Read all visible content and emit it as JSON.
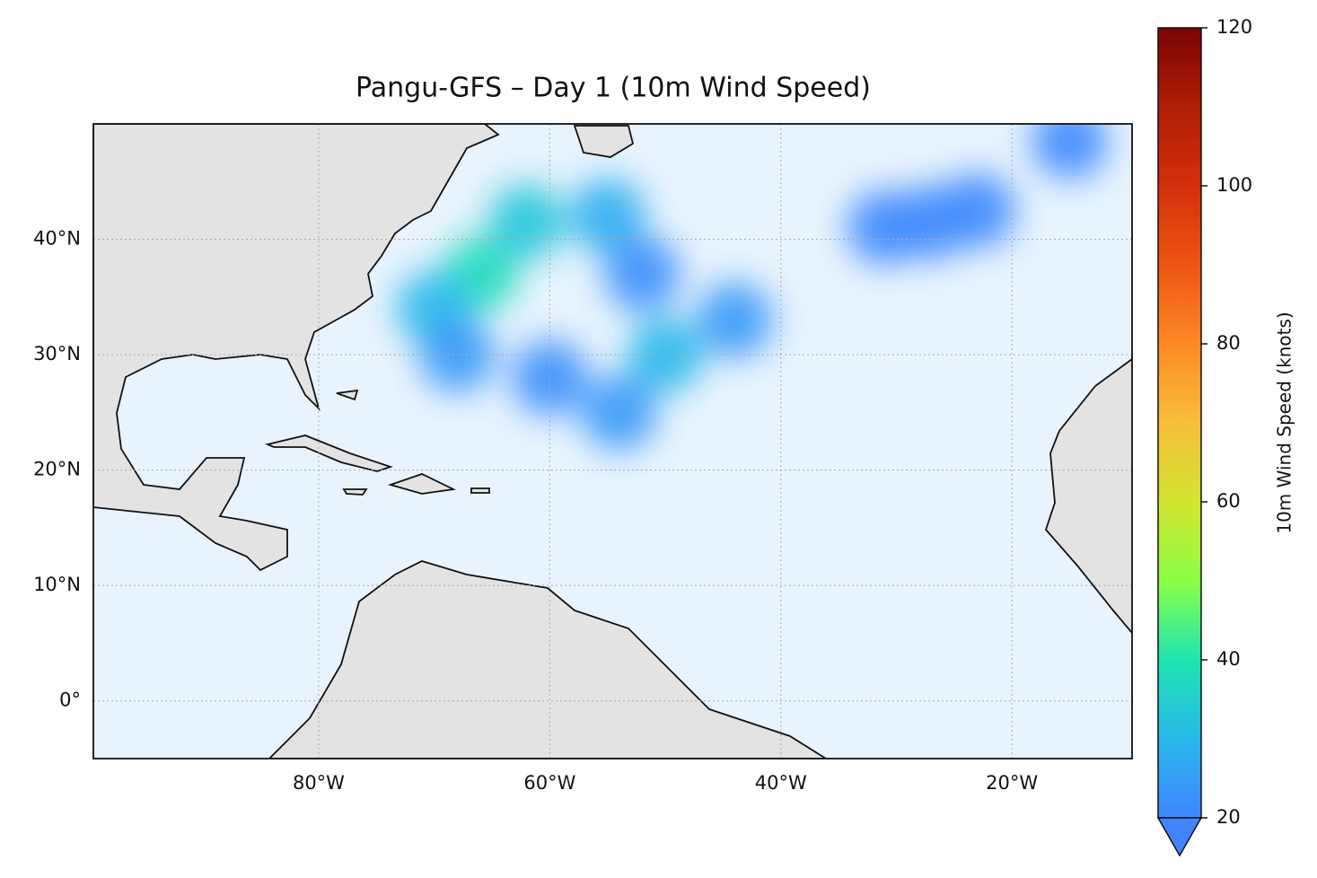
{
  "chart_data": {
    "type": "map",
    "title": "Pangu-GFS – Day 1 (10m Wind Speed)",
    "xlim": [
      -99.5,
      -9.6
    ],
    "ylim": [
      -5,
      50
    ],
    "xticks": [
      {
        "value": -80,
        "label": "80°W"
      },
      {
        "value": -60,
        "label": "60°W"
      },
      {
        "value": -40,
        "label": "40°W"
      },
      {
        "value": -20,
        "label": "20°W"
      }
    ],
    "yticks": [
      {
        "value": 0,
        "label": "0°"
      },
      {
        "value": 10,
        "label": "10°N"
      },
      {
        "value": 20,
        "label": "20°N"
      },
      {
        "value": 30,
        "label": "30°N"
      },
      {
        "value": 40,
        "label": "40°N"
      }
    ],
    "grid": true,
    "colorbar": {
      "label": "10m Wind Speed (knots)",
      "lim": [
        20,
        120
      ],
      "ticks": [
        20,
        40,
        60,
        80,
        100,
        120
      ],
      "colors": [
        "#4085ff",
        "#29b8ea",
        "#1ee5b0",
        "#8bff47",
        "#d4e530",
        "#f7be3a",
        "#fc8a24",
        "#ee5512",
        "#d3300b",
        "#b01d04",
        "#7a0403"
      ]
    },
    "wind": [
      {
        "lon": -66,
        "lat": 37,
        "speed": 38
      },
      {
        "lon": -70,
        "lat": 34,
        "speed": 30
      },
      {
        "lon": -62,
        "lat": 41.5,
        "speed": 33
      },
      {
        "lon": -55,
        "lat": 42,
        "speed": 28
      },
      {
        "lon": -68,
        "lat": 30,
        "speed": 24
      },
      {
        "lon": -60,
        "lat": 28,
        "speed": 22
      },
      {
        "lon": -50,
        "lat": 30,
        "speed": 30
      },
      {
        "lon": -44,
        "lat": 33,
        "speed": 24
      },
      {
        "lon": -54,
        "lat": 25,
        "speed": 24
      },
      {
        "lon": -52,
        "lat": 37,
        "speed": 22
      },
      {
        "lon": -31,
        "lat": 41,
        "speed": 21
      },
      {
        "lon": -27,
        "lat": 41.5,
        "speed": 21
      },
      {
        "lon": -23,
        "lat": 42.5,
        "speed": 21
      },
      {
        "lon": -15,
        "lat": 48.5,
        "speed": 21
      }
    ]
  }
}
